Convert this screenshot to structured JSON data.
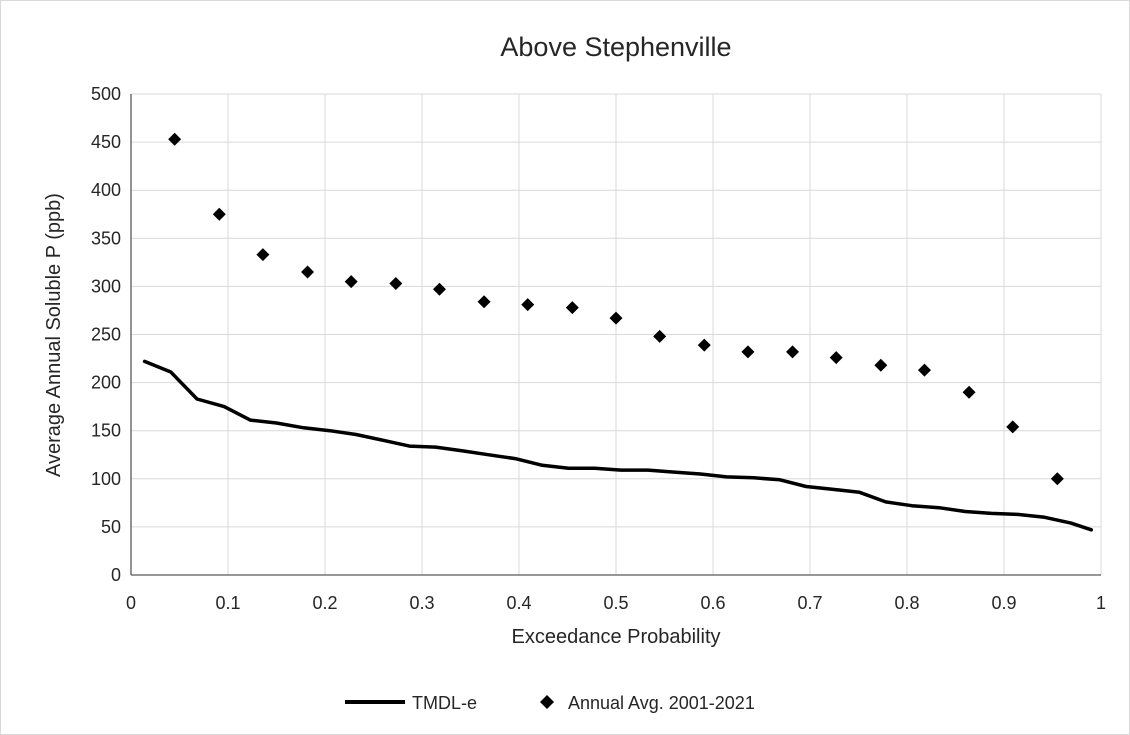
{
  "chart_data": {
    "type": "scatter",
    "title": "Above Stephenville",
    "xlabel": "Exceedance Probability",
    "ylabel": "Average Annual Soluble P (ppb)",
    "xlim": [
      0,
      1
    ],
    "ylim": [
      0,
      500
    ],
    "x_ticks": [
      "0",
      "0.1",
      "0.2",
      "0.3",
      "0.4",
      "0.5",
      "0.6",
      "0.7",
      "0.8",
      "0.9",
      "1"
    ],
    "y_ticks": [
      "0",
      "50",
      "100",
      "150",
      "200",
      "250",
      "300",
      "350",
      "400",
      "450",
      "500"
    ],
    "grid": true,
    "legend_position": "bottom",
    "series": [
      {
        "name": "TMDL-e",
        "kind": "line",
        "color": "#000000",
        "x": [
          0.014,
          0.041,
          0.068,
          0.096,
          0.123,
          0.15,
          0.178,
          0.205,
          0.232,
          0.26,
          0.287,
          0.314,
          0.342,
          0.369,
          0.396,
          0.424,
          0.451,
          0.478,
          0.505,
          0.533,
          0.56,
          0.587,
          0.614,
          0.642,
          0.669,
          0.696,
          0.724,
          0.751,
          0.778,
          0.805,
          0.833,
          0.86,
          0.887,
          0.914,
          0.942,
          0.969,
          0.99
        ],
        "y": [
          222,
          211,
          183,
          175,
          161,
          158,
          153,
          150,
          146,
          140,
          134,
          133,
          129,
          125,
          121,
          114,
          111,
          111,
          109,
          109,
          107,
          105,
          102,
          101,
          99,
          92,
          89,
          86,
          76,
          72,
          70,
          66,
          64,
          63,
          60,
          54,
          47
        ]
      },
      {
        "name": "Annual Avg. 2001-2021",
        "kind": "scatter",
        "color": "#000000",
        "marker": "diamond",
        "x": [
          0.045,
          0.091,
          0.136,
          0.182,
          0.227,
          0.273,
          0.318,
          0.364,
          0.409,
          0.455,
          0.5,
          0.545,
          0.591,
          0.636,
          0.682,
          0.727,
          0.773,
          0.818,
          0.864,
          0.909,
          0.955
        ],
        "y": [
          453,
          375,
          333,
          315,
          305,
          303,
          297,
          284,
          281,
          278,
          267,
          248,
          239,
          232,
          232,
          226,
          218,
          213,
          190,
          154,
          100
        ]
      }
    ]
  }
}
